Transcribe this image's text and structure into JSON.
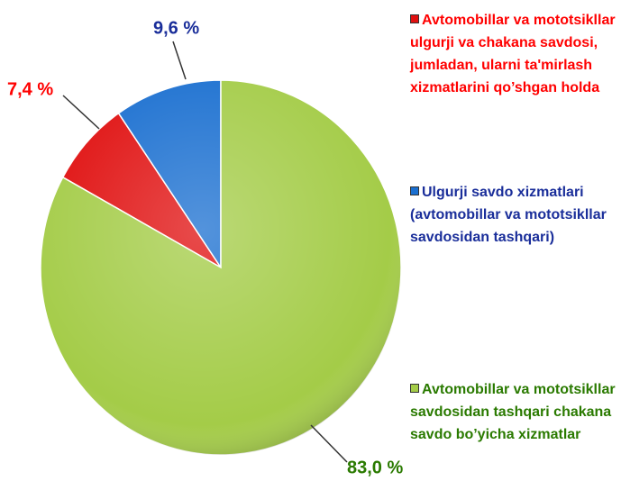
{
  "chart_data": {
    "type": "pie",
    "categories": [
      "Avtomobillar va mototsikllar ulgurji va chakana savdosi, jumladan, ularni ta'mirlash xizmatlarini qo’shgan holda",
      "Ulgurji savdo xizmatlari (avtomobillar va mototsikllar savdosidan tashqari)",
      "Avtomobillar va mototsikllar savdosidan tashqari chakana  savdo bo’yicha xizmatlar"
    ],
    "values": [
      7.4,
      9.6,
      83.0
    ],
    "value_labels": [
      "7,4 %",
      "9,6 %",
      "83,0 %"
    ],
    "colors": [
      "#e01010",
      "#1a6fd0",
      "#a4cc48"
    ]
  }
}
